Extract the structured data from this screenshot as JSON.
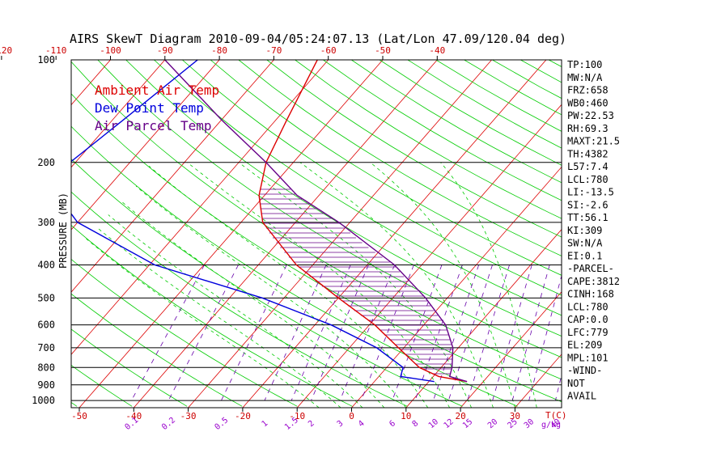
{
  "chart_data": {
    "type": "line",
    "title": "AIRS SkewT Diagram  2010-09-04/05:24:07.13 (Lat/Lon 47.09/120.04 deg)",
    "ylabel": "PRESSURE (MB)",
    "xlabel": "T(C)",
    "mixing_label": "g/kg",
    "pressure_levels": [
      100,
      200,
      300,
      400,
      500,
      600,
      700,
      800,
      900,
      1000
    ],
    "bottom_temps": [
      -50,
      -40,
      -30,
      -20,
      -10,
      0,
      10,
      20,
      30
    ],
    "top_temps": [
      -120,
      -110,
      -100,
      -90,
      -80,
      -70,
      -60,
      -50,
      -40
    ],
    "mixing_ratios": [
      "0.1",
      "0.2",
      "0.5",
      "1",
      "1.5",
      "2",
      "3",
      "4",
      "6",
      "8",
      "10",
      "12",
      "15",
      "20",
      "25",
      "30",
      "40"
    ],
    "legend": [
      {
        "name": "Ambient Air Temp",
        "color": "#dd0000"
      },
      {
        "name": "Dew Point Temp",
        "color": "#0000dd"
      },
      {
        "name": "Air Parcel Temp",
        "color": "#660088"
      }
    ],
    "series": [
      {
        "name": "Ambient Air Temp",
        "points": [
          [
            100,
            -62
          ],
          [
            150,
            -58
          ],
          [
            200,
            -55
          ],
          [
            250,
            -51
          ],
          [
            300,
            -46
          ],
          [
            400,
            -33
          ],
          [
            500,
            -20
          ],
          [
            600,
            -9
          ],
          [
            700,
            -1
          ],
          [
            800,
            6
          ],
          [
            850,
            11
          ],
          [
            880,
            17
          ]
        ]
      },
      {
        "name": "Dew Point Temp",
        "points": [
          [
            100,
            -84
          ],
          [
            150,
            -88
          ],
          [
            200,
            -91
          ],
          [
            250,
            -88
          ],
          [
            300,
            -80
          ],
          [
            400,
            -59
          ],
          [
            500,
            -34
          ],
          [
            600,
            -17
          ],
          [
            700,
            -5
          ],
          [
            800,
            3
          ],
          [
            850,
            4
          ],
          [
            880,
            11
          ]
        ]
      },
      {
        "name": "Air Parcel Temp",
        "points": [
          [
            100,
            -90
          ],
          [
            150,
            -70
          ],
          [
            200,
            -55
          ],
          [
            250,
            -44
          ],
          [
            300,
            -32
          ],
          [
            400,
            -15
          ],
          [
            500,
            -4
          ],
          [
            600,
            4
          ],
          [
            700,
            9
          ],
          [
            800,
            12
          ],
          [
            850,
            13
          ],
          [
            880,
            17
          ]
        ]
      }
    ]
  },
  "stats": [
    "TP:100",
    "MW:N/A",
    "FRZ:658",
    "WB0:460",
    "PW:22.53",
    "RH:69.3",
    "MAXT:21.5",
    "TH:4382",
    "L57:7.4",
    "LCL:780",
    "LI:-13.5",
    "SI:-2.6",
    "TT:56.1",
    "KI:309",
    "SW:N/A",
    "EI:0.1",
    "-PARCEL-",
    "CAPE:3812",
    "CINH:168",
    "LCL:780",
    "CAP:0.0",
    "LFC:779",
    "EL:209",
    "MPL:101",
    "-WIND-",
    "NOT",
    "AVAIL"
  ]
}
